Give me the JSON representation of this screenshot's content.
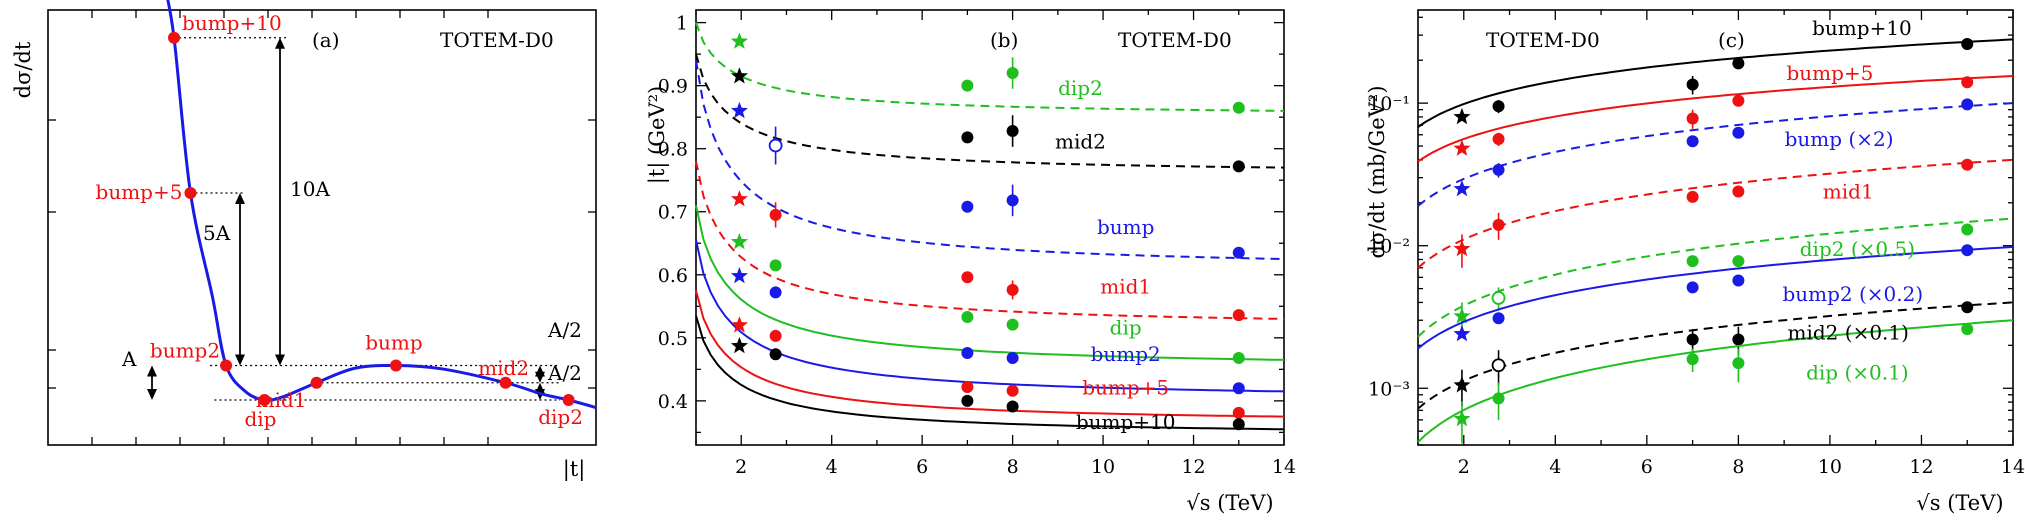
{
  "colors": {
    "black": "#000000",
    "red": "#ee1111",
    "blue": "#1a1ae6",
    "green": "#1fbf1f",
    "curve_a": "#1a1ae6",
    "point_a": "#ee1111"
  },
  "chart_data": [
    {
      "id": "a",
      "type": "line",
      "panel_label": "(a)",
      "header": "TOTEM-D0",
      "ylabel": "dσ/dt",
      "xlabel": "|t|",
      "grid": false,
      "points": [
        {
          "name": "bump+10",
          "x": 0.23,
          "y": 10.5
        },
        {
          "name": "bump+5",
          "x": 0.26,
          "y": 6.0
        },
        {
          "name": "bump2",
          "x": 0.325,
          "y": 1.0
        },
        {
          "name": "dip",
          "x": 0.395,
          "y": 0.0
        },
        {
          "name": "mid1",
          "x": 0.49,
          "y": 0.5
        },
        {
          "name": "bump",
          "x": 0.635,
          "y": 1.0
        },
        {
          "name": "mid2",
          "x": 0.835,
          "y": 0.5
        },
        {
          "name": "dip2",
          "x": 0.95,
          "y": 0.0
        }
      ],
      "annotations": [
        "10A",
        "5A",
        "A",
        "A/2",
        "A/2"
      ]
    },
    {
      "id": "b",
      "type": "line",
      "panel_label": "(b)",
      "header": "TOTEM-D0",
      "xlabel": "√s   (TeV)",
      "ylabel": "|t|   (GeV²)",
      "xlim": [
        1,
        14
      ],
      "ylim": [
        0.33,
        1.02
      ],
      "xticks": [
        "2",
        "4",
        "6",
        "8",
        "10",
        "12",
        "14"
      ],
      "yticks": [
        "0.4",
        "0.5",
        "0.6",
        "0.7",
        "0.8",
        "0.9",
        "1"
      ],
      "grid": false,
      "series": [
        {
          "name": "dip2",
          "color": "green",
          "dash": true,
          "fit": [
            1.0,
            0.86
          ],
          "stars": [
            [
              1.96,
              0.97
            ]
          ],
          "open": [],
          "filled": [
            [
              7,
              0.9
            ],
            [
              8,
              0.92
            ],
            [
              13,
              0.865
            ]
          ],
          "err": {
            "8": 0.025
          }
        },
        {
          "name": "mid2",
          "color": "black",
          "dash": true,
          "fit": [
            0.95,
            0.77
          ],
          "stars": [
            [
              1.96,
              0.915
            ]
          ],
          "open": [],
          "filled": [
            [
              7,
              0.818
            ],
            [
              8,
              0.828
            ],
            [
              13,
              0.772
            ]
          ],
          "err": {
            "8": 0.025
          }
        },
        {
          "name": "bump",
          "color": "blue",
          "dash": true,
          "fit": [
            0.94,
            0.625
          ],
          "stars": [
            [
              1.96,
              0.86
            ]
          ],
          "open": [
            [
              2.76,
              0.805
            ]
          ],
          "filled": [
            [
              7,
              0.708
            ],
            [
              8,
              0.718
            ],
            [
              13,
              0.635
            ]
          ],
          "err": {
            "2.76": 0.03,
            "8": 0.025
          }
        },
        {
          "name": "mid1",
          "color": "red",
          "dash": true,
          "fit": [
            0.78,
            0.53
          ],
          "stars": [
            [
              1.96,
              0.72
            ]
          ],
          "open": [],
          "filled": [
            [
              2.76,
              0.695
            ],
            [
              7,
              0.596
            ],
            [
              8,
              0.576
            ],
            [
              13,
              0.536
            ]
          ],
          "err": {
            "2.76": 0.02,
            "8": 0.015
          }
        },
        {
          "name": "dip",
          "color": "green",
          "dash": false,
          "fit": [
            0.71,
            0.465
          ],
          "stars": [
            [
              1.96,
              0.652
            ]
          ],
          "open": [],
          "filled": [
            [
              2.76,
              0.615
            ],
            [
              7,
              0.533
            ],
            [
              8,
              0.521
            ],
            [
              13,
              0.468
            ]
          ],
          "err": {}
        },
        {
          "name": "bump2",
          "color": "blue",
          "dash": false,
          "fit": [
            0.655,
            0.415
          ],
          "stars": [
            [
              1.96,
              0.598
            ]
          ],
          "open": [],
          "filled": [
            [
              2.76,
              0.572
            ],
            [
              7,
              0.476
            ],
            [
              8,
              0.468
            ],
            [
              13,
              0.42
            ]
          ],
          "err": {}
        },
        {
          "name": "bump+5",
          "color": "red",
          "dash": false,
          "fit": [
            0.575,
            0.375
          ],
          "stars": [
            [
              1.96,
              0.52
            ]
          ],
          "open": [],
          "filled": [
            [
              2.76,
              0.503
            ],
            [
              7,
              0.422
            ],
            [
              8,
              0.416
            ],
            [
              13,
              0.381
            ]
          ],
          "err": {}
        },
        {
          "name": "bump+10",
          "color": "black",
          "dash": false,
          "fit": [
            0.535,
            0.355
          ],
          "stars": [
            [
              1.96,
              0.487
            ]
          ],
          "open": [],
          "filled": [
            [
              2.76,
              0.474
            ],
            [
              7,
              0.4
            ],
            [
              8,
              0.391
            ],
            [
              13,
              0.363
            ]
          ],
          "err": {}
        }
      ],
      "labels": [
        {
          "text": "dip2",
          "color": "green",
          "x": 9.5,
          "y": 0.885
        },
        {
          "text": "mid2",
          "color": "black",
          "x": 9.5,
          "y": 0.8
        },
        {
          "text": "bump",
          "color": "blue",
          "x": 10.5,
          "y": 0.665
        },
        {
          "text": "mid1",
          "color": "red",
          "x": 10.5,
          "y": 0.57
        },
        {
          "text": "dip",
          "color": "green",
          "x": 10.5,
          "y": 0.505
        },
        {
          "text": "bump2",
          "color": "blue",
          "x": 10.5,
          "y": 0.463
        },
        {
          "text": "bump+5",
          "color": "red",
          "x": 10.5,
          "y": 0.41
        },
        {
          "text": "bump+10",
          "color": "black",
          "x": 10.5,
          "y": 0.355
        }
      ]
    },
    {
      "id": "c",
      "type": "line",
      "panel_label": "(c)",
      "header": "TOTEM-D0",
      "xlabel": "√s   (TeV)",
      "ylabel": "dσ/dt   (mb/GeV²)",
      "xlim": [
        1,
        14
      ],
      "ylim": [
        0.0004,
        0.45
      ],
      "yscale": "log",
      "xticks": [
        "2",
        "4",
        "6",
        "8",
        "10",
        "12",
        "14"
      ],
      "yticks": [
        "10⁻³",
        "10⁻²",
        "10⁻¹"
      ],
      "grid": false,
      "series": [
        {
          "name": "bump+10",
          "color": "black",
          "dash": false,
          "fit": [
            0.068,
            0.28
          ],
          "stars": [
            [
              1.96,
              0.08
            ]
          ],
          "open": [],
          "filled": [
            [
              2.76,
              0.095
            ],
            [
              7,
              0.135
            ],
            [
              8,
              0.19
            ],
            [
              13,
              0.26
            ]
          ],
          "err": {
            "7": 0.02,
            "2.76": 0.01
          }
        },
        {
          "name": "bump+5",
          "color": "red",
          "dash": false,
          "fit": [
            0.039,
            0.155
          ],
          "stars": [
            [
              1.96,
              0.048
            ]
          ],
          "open": [],
          "filled": [
            [
              2.76,
              0.056
            ],
            [
              7,
              0.078
            ],
            [
              8,
              0.104
            ],
            [
              13,
              0.14
            ]
          ],
          "err": {
            "7": 0.012,
            "2.76": 0.006
          }
        },
        {
          "name": "bump (×2)",
          "color": "blue",
          "dash": true,
          "fit": [
            0.019,
            0.1
          ],
          "stars": [
            [
              1.96,
              0.025
            ]
          ],
          "open": [],
          "filled": [
            [
              2.76,
              0.034
            ],
            [
              7,
              0.054
            ],
            [
              8,
              0.062
            ],
            [
              13,
              0.098
            ]
          ],
          "err": {
            "2.76": 0.004
          }
        },
        {
          "name": "mid1",
          "color": "red",
          "dash": true,
          "fit": [
            0.007,
            0.04
          ],
          "stars": [
            [
              1.96,
              0.0095
            ]
          ],
          "open": [],
          "filled": [
            [
              2.76,
              0.014
            ],
            [
              7,
              0.022
            ],
            [
              8,
              0.024
            ],
            [
              13,
              0.037
            ]
          ],
          "err": {
            "2.76": 0.003,
            "1.96": 0.0025
          }
        },
        {
          "name": "dip2 (×0.5)",
          "color": "green",
          "dash": true,
          "fit": [
            0.0023,
            0.0155
          ],
          "stars": [
            [
              1.96,
              0.0032
            ]
          ],
          "open": [
            [
              2.76,
              0.0043
            ]
          ],
          "filled": [
            [
              7,
              0.0078
            ],
            [
              8,
              0.0078
            ],
            [
              13,
              0.013
            ]
          ],
          "err": {
            "1.96": 0.0008,
            "2.76": 0.0008
          }
        },
        {
          "name": "bump2 (×0.2)",
          "color": "blue",
          "dash": false,
          "fit": [
            0.0019,
            0.0098
          ],
          "stars": [
            [
              1.96,
              0.0024
            ]
          ],
          "open": [],
          "filled": [
            [
              2.76,
              0.0031
            ],
            [
              7,
              0.0051
            ],
            [
              8,
              0.0057
            ],
            [
              13,
              0.0093
            ]
          ],
          "err": {}
        },
        {
          "name": "mid2 (×0.1)",
          "color": "black",
          "dash": true,
          "fit": [
            0.00072,
            0.004
          ],
          "stars": [
            [
              1.96,
              0.00105
            ]
          ],
          "open": [
            [
              2.76,
              0.00145
            ]
          ],
          "filled": [
            [
              7,
              0.0022
            ],
            [
              8,
              0.0022
            ],
            [
              13,
              0.0037
            ]
          ],
          "err": {
            "1.96": 0.0003,
            "2.76": 0.0004,
            "7": 0.0004,
            "8": 0.0005
          }
        },
        {
          "name": "dip (×0.1)",
          "color": "green",
          "dash": false,
          "fit": [
            0.00042,
            0.003
          ],
          "stars": [
            [
              1.96,
              0.00061
            ]
          ],
          "open": [],
          "filled": [
            [
              2.76,
              0.00085
            ],
            [
              7,
              0.0016
            ],
            [
              8,
              0.0015
            ],
            [
              13,
              0.0026
            ]
          ],
          "err": {
            "1.96": 0.0002,
            "2.76": 0.00025,
            "7": 0.0003,
            "8": 0.0004
          }
        }
      ],
      "labels": [
        {
          "text": "bump+10",
          "color": "black",
          "x": 10.7,
          "y": 0.3
        },
        {
          "text": "bump+5",
          "color": "red",
          "x": 10.0,
          "y": 0.145
        },
        {
          "text": "bump (×2)",
          "color": "blue",
          "x": 10.2,
          "y": 0.05
        },
        {
          "text": "mid1",
          "color": "red",
          "x": 10.4,
          "y": 0.0215
        },
        {
          "text": "dip2 (×0.5)",
          "color": "green",
          "x": 10.6,
          "y": 0.0085
        },
        {
          "text": "bump2 (×0.2)",
          "color": "blue",
          "x": 10.5,
          "y": 0.0041
        },
        {
          "text": "mid2 (×0.1)",
          "color": "black",
          "x": 10.4,
          "y": 0.0022
        },
        {
          "text": "dip (×0.1)",
          "color": "green",
          "x": 10.6,
          "y": 0.00115
        }
      ]
    }
  ]
}
